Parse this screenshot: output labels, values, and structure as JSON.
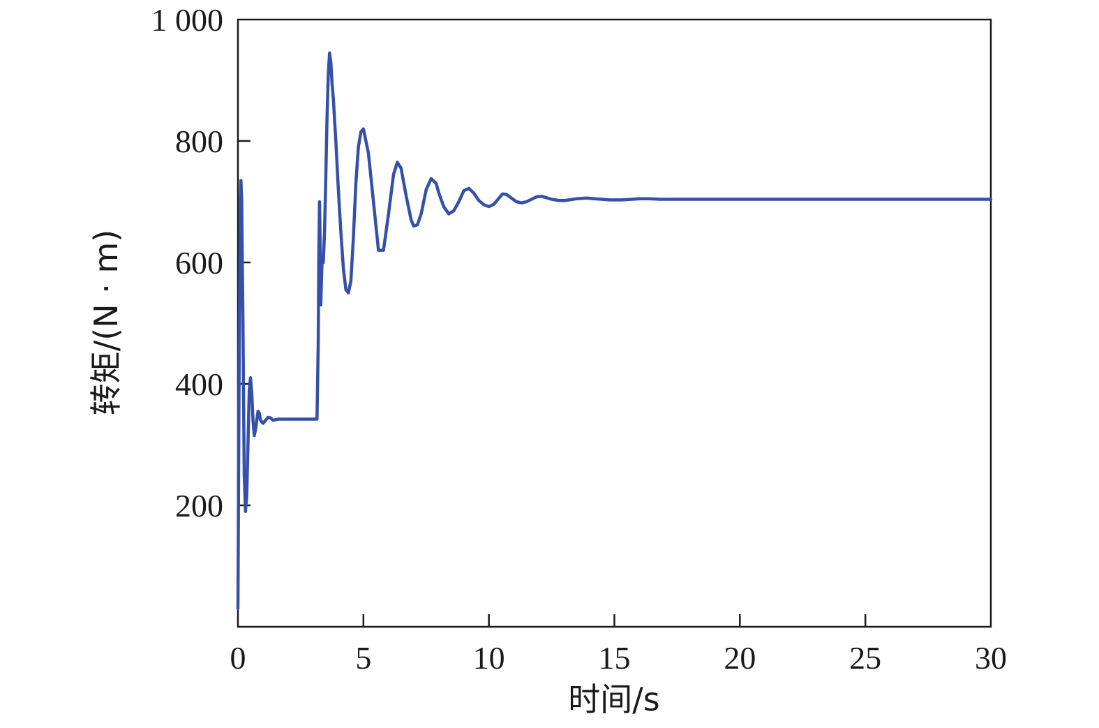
{
  "chart_data": {
    "type": "line",
    "title": "",
    "xlabel": "时间/s",
    "ylabel": "转矩/(N · m)",
    "xlim": [
      0,
      30
    ],
    "ylim": [
      0,
      1000
    ],
    "x_ticks": [
      0,
      5,
      10,
      15,
      20,
      25,
      30
    ],
    "x_tick_labels": [
      "0",
      "5",
      "10",
      "15",
      "20",
      "25",
      "30"
    ],
    "y_ticks": [
      200,
      400,
      600,
      800,
      1000
    ],
    "y_tick_labels": [
      "200",
      "400",
      "600",
      "800",
      "1 000"
    ],
    "grid": false,
    "legend": "none",
    "colors": {
      "series": "#3550a8",
      "axis": "#1a1a1a"
    },
    "series": [
      {
        "x": [
          0.0,
          0.05,
          0.1,
          0.12,
          0.15,
          0.2,
          0.25,
          0.3,
          0.35,
          0.4,
          0.45,
          0.5,
          0.55,
          0.6,
          0.65,
          0.7,
          0.75,
          0.8,
          0.85,
          0.9,
          1.0,
          1.1,
          1.2,
          1.3,
          1.4,
          1.5,
          1.6,
          1.7,
          1.8,
          1.9,
          2.0,
          2.1,
          2.2,
          2.3,
          2.4,
          2.5,
          2.6,
          2.7,
          2.8,
          2.9,
          3.0,
          3.1,
          3.15,
          3.2,
          3.22,
          3.25,
          3.28,
          3.3,
          3.32,
          3.35,
          3.4,
          3.45,
          3.5,
          3.55,
          3.6,
          3.65,
          3.7,
          3.75,
          3.8,
          3.9,
          4.0,
          4.1,
          4.2,
          4.3,
          4.4,
          4.5,
          4.6,
          4.7,
          4.8,
          4.9,
          5.0,
          5.2,
          5.4,
          5.5,
          5.6,
          5.8,
          6.0,
          6.2,
          6.35,
          6.5,
          6.7,
          6.9,
          7.0,
          7.15,
          7.3,
          7.5,
          7.7,
          7.9,
          8.0,
          8.2,
          8.4,
          8.6,
          8.8,
          9.0,
          9.2,
          9.4,
          9.6,
          9.8,
          10.0,
          10.2,
          10.4,
          10.55,
          10.7,
          10.9,
          11.1,
          11.3,
          11.5,
          11.7,
          11.9,
          12.1,
          12.25,
          12.5,
          12.8,
          13.0,
          13.2,
          13.5,
          13.9,
          14.2,
          14.5,
          14.8,
          15.0,
          15.3,
          15.7,
          16.0,
          16.4,
          16.8,
          17.2,
          17.6,
          18.0,
          18.5,
          19.0,
          20.0,
          22.0,
          24.0,
          26.0,
          28.0,
          30.0
        ],
        "y": [
          30,
          450,
          700,
          735,
          700,
          500,
          250,
          190,
          215,
          300,
          390,
          410,
          385,
          340,
          315,
          325,
          340,
          355,
          352,
          340,
          335,
          340,
          345,
          344,
          340,
          341,
          342,
          342,
          342,
          342,
          342,
          342,
          342,
          342,
          342,
          342,
          342,
          342,
          342,
          342,
          342,
          342,
          342,
          470,
          600,
          700,
          620,
          530,
          560,
          600,
          600,
          650,
          740,
          840,
          910,
          945,
          930,
          895,
          870,
          800,
          720,
          650,
          590,
          555,
          550,
          570,
          640,
          730,
          790,
          815,
          820,
          780,
          700,
          660,
          620,
          620,
          680,
          745,
          765,
          755,
          710,
          670,
          660,
          662,
          680,
          720,
          738,
          730,
          715,
          692,
          680,
          685,
          700,
          718,
          722,
          714,
          702,
          695,
          692,
          696,
          706,
          713,
          712,
          706,
          700,
          698,
          700,
          704,
          708,
          709,
          707,
          704,
          702,
          702,
          703,
          705,
          706,
          705,
          704,
          703,
          703,
          703,
          704,
          705,
          705,
          704,
          704,
          704,
          704,
          704,
          704,
          704,
          704,
          704,
          704,
          704,
          704
        ]
      }
    ]
  }
}
